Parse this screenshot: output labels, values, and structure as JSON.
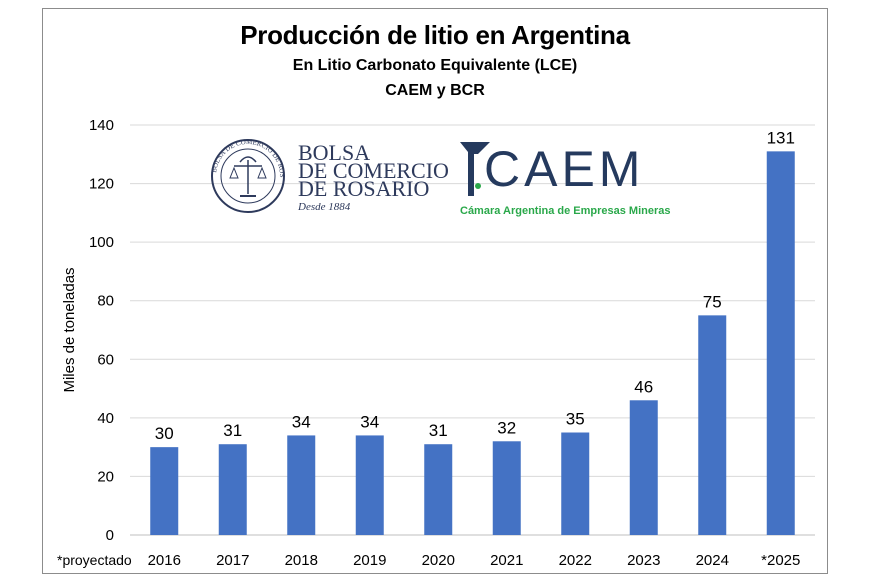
{
  "chart_data": {
    "type": "bar",
    "title": "Producción de litio en Argentina",
    "subtitle": "En Litio Carbonato Equivalente (LCE)",
    "source": "CAEM y BCR",
    "ylabel": "Miles de toneladas",
    "xlabel": "",
    "note": "*proyectado",
    "categories": [
      "2016",
      "2017",
      "2018",
      "2019",
      "2020",
      "2021",
      "2022",
      "2023",
      "2024",
      "*2025"
    ],
    "values": [
      30,
      31,
      34,
      34,
      31,
      32,
      35,
      46,
      75,
      131
    ],
    "ylim": [
      0,
      140
    ],
    "yticks": [
      0,
      20,
      40,
      60,
      80,
      100,
      120,
      140
    ],
    "grid": true,
    "bar_color": "#4472c4"
  },
  "logos": {
    "bcr": {
      "line1": "BOLSA",
      "line2": "DE COMERCIO",
      "line3": "DE ROSARIO",
      "since": "Desde 1884",
      "seal_text": "BOLSA DE COMERCIO DE ROSARIO"
    },
    "caem": {
      "name": "CAEM",
      "full_name": "Cámara Argentina de Empresas Mineras",
      "color": "#2aa84a"
    }
  }
}
